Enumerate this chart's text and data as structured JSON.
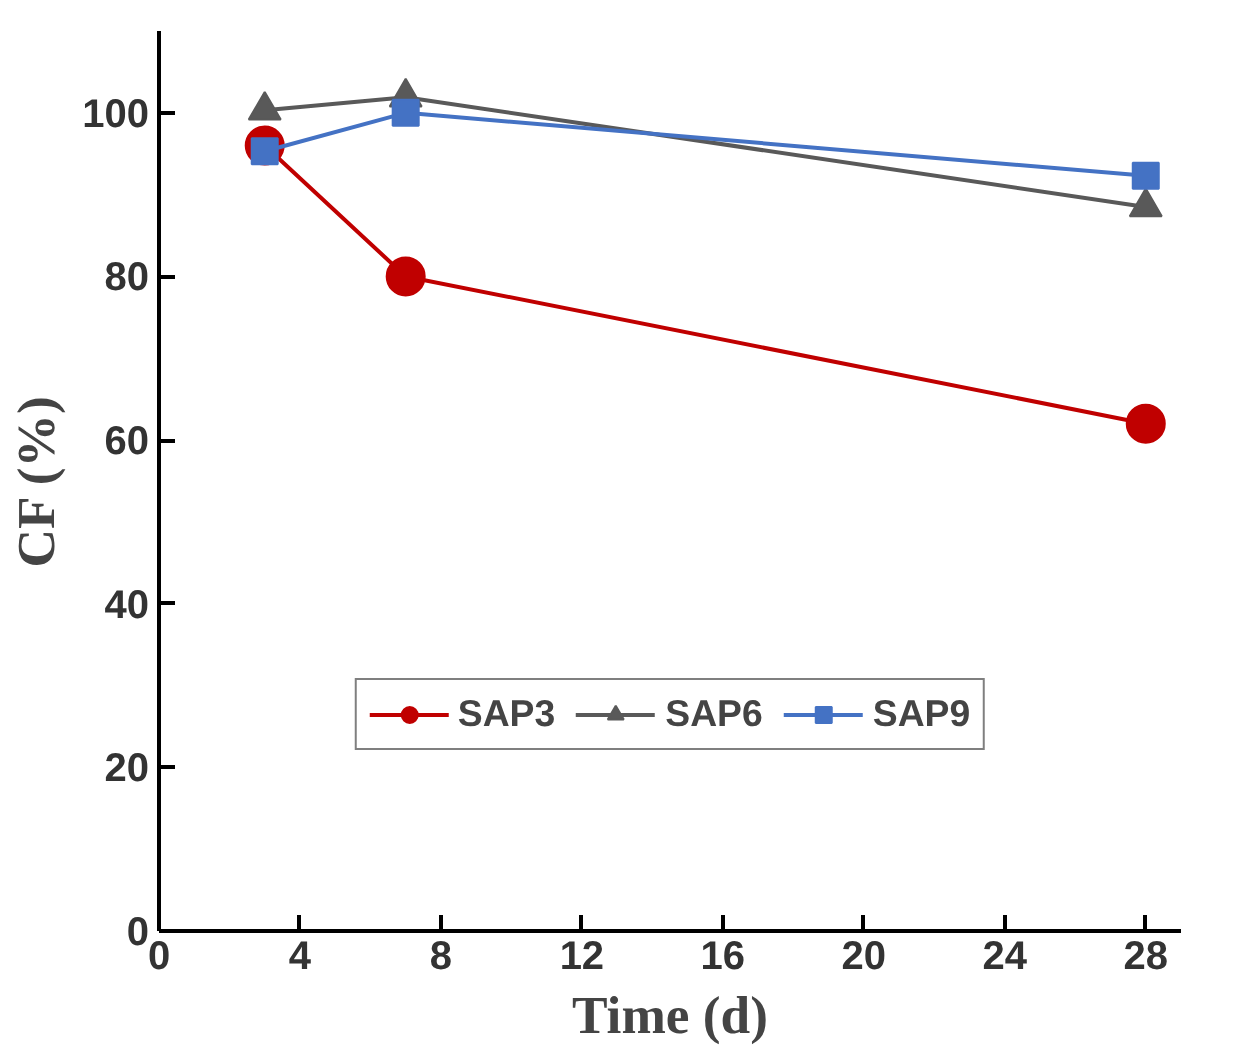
{
  "chart_data": {
    "type": "line",
    "xlabel": "Time (d)",
    "ylabel": "CF (%)",
    "x": [
      3,
      7,
      28
    ],
    "series": [
      {
        "name": "SAP3",
        "color": "#c00000",
        "values": [
          96,
          80,
          62
        ],
        "marker": "circle"
      },
      {
        "name": "SAP6",
        "color": "#595959",
        "values": [
          100.3,
          101.9,
          88.5
        ],
        "marker": "triangle"
      },
      {
        "name": "SAP9",
        "color": "#4472c4",
        "values": [
          95.3,
          100,
          92.3
        ],
        "marker": "square"
      }
    ],
    "xlim": [
      0,
      29
    ],
    "xticks": [
      0,
      4,
      8,
      12,
      16,
      20,
      24,
      28
    ],
    "ylim": [
      0,
      110
    ],
    "yticks": [
      0,
      20,
      40,
      60,
      80,
      100
    ],
    "grid": false,
    "legend": "bottom",
    "line_style": "solid"
  }
}
